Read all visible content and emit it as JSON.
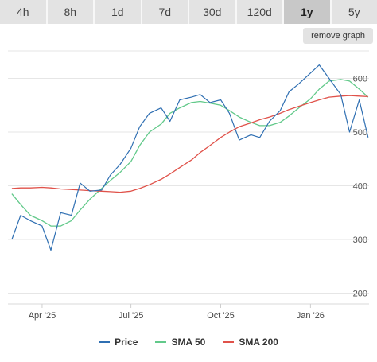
{
  "tabs": [
    "4h",
    "8h",
    "1d",
    "7d",
    "30d",
    "120d",
    "1y",
    "5y"
  ],
  "active_tab": "1y",
  "remove_label": "remove graph",
  "colors": {
    "price": "#2f6fb2",
    "sma50": "#62c98a",
    "sma200": "#e0524a"
  },
  "chart_data": {
    "type": "line",
    "x": [
      "2025-03-01",
      "2025-03-10",
      "2025-03-20",
      "2025-04-01",
      "2025-04-10",
      "2025-04-20",
      "2025-05-01",
      "2025-05-10",
      "2025-05-20",
      "2025-06-01",
      "2025-06-10",
      "2025-06-20",
      "2025-07-01",
      "2025-07-10",
      "2025-07-20",
      "2025-08-01",
      "2025-08-10",
      "2025-08-20",
      "2025-09-01",
      "2025-09-10",
      "2025-09-20",
      "2025-10-01",
      "2025-10-10",
      "2025-10-20",
      "2025-11-01",
      "2025-11-10",
      "2025-11-20",
      "2025-12-01",
      "2025-12-10",
      "2025-12-20",
      "2026-01-01",
      "2026-01-10",
      "2026-01-20",
      "2026-02-01",
      "2026-02-10",
      "2026-02-20",
      "2026-03-01"
    ],
    "series": [
      {
        "name": "Price",
        "values": [
          300,
          345,
          335,
          325,
          280,
          350,
          345,
          405,
          390,
          392,
          420,
          440,
          470,
          510,
          535,
          545,
          520,
          560,
          565,
          570,
          555,
          560,
          535,
          485,
          495,
          490,
          520,
          540,
          575,
          590,
          610,
          625,
          600,
          570,
          500,
          560,
          490
        ]
      },
      {
        "name": "SMA 50",
        "values": [
          385,
          365,
          345,
          335,
          325,
          325,
          335,
          355,
          375,
          395,
          410,
          425,
          445,
          475,
          500,
          515,
          535,
          545,
          555,
          557,
          554,
          550,
          540,
          528,
          518,
          512,
          512,
          518,
          530,
          545,
          562,
          580,
          595,
          598,
          595,
          580,
          565
        ]
      },
      {
        "name": "SMA 200",
        "values": [
          395,
          396,
          396,
          397,
          396,
          394,
          393,
          392,
          391,
          390,
          389,
          388,
          390,
          395,
          402,
          412,
          422,
          434,
          448,
          462,
          475,
          490,
          500,
          510,
          517,
          523,
          528,
          535,
          542,
          548,
          555,
          560,
          565,
          567,
          568,
          567,
          566
        ]
      }
    ],
    "x_ticks": [
      {
        "label": "Apr '25",
        "x": "2025-04-01"
      },
      {
        "label": "Jul '25",
        "x": "2025-07-01"
      },
      {
        "label": "Oct '25",
        "x": "2025-10-01"
      },
      {
        "label": "Jan '26",
        "x": "2026-01-01"
      }
    ],
    "y_ticks": [
      200,
      300,
      400,
      500,
      600
    ],
    "y_tick_labels": [
      "200",
      "300",
      "400",
      "500",
      "600"
    ],
    "ylim": [
      180,
      660
    ],
    "xlim": [
      "2025-02-25",
      "2026-03-02"
    ],
    "grid": true,
    "legend_position": "bottom"
  }
}
